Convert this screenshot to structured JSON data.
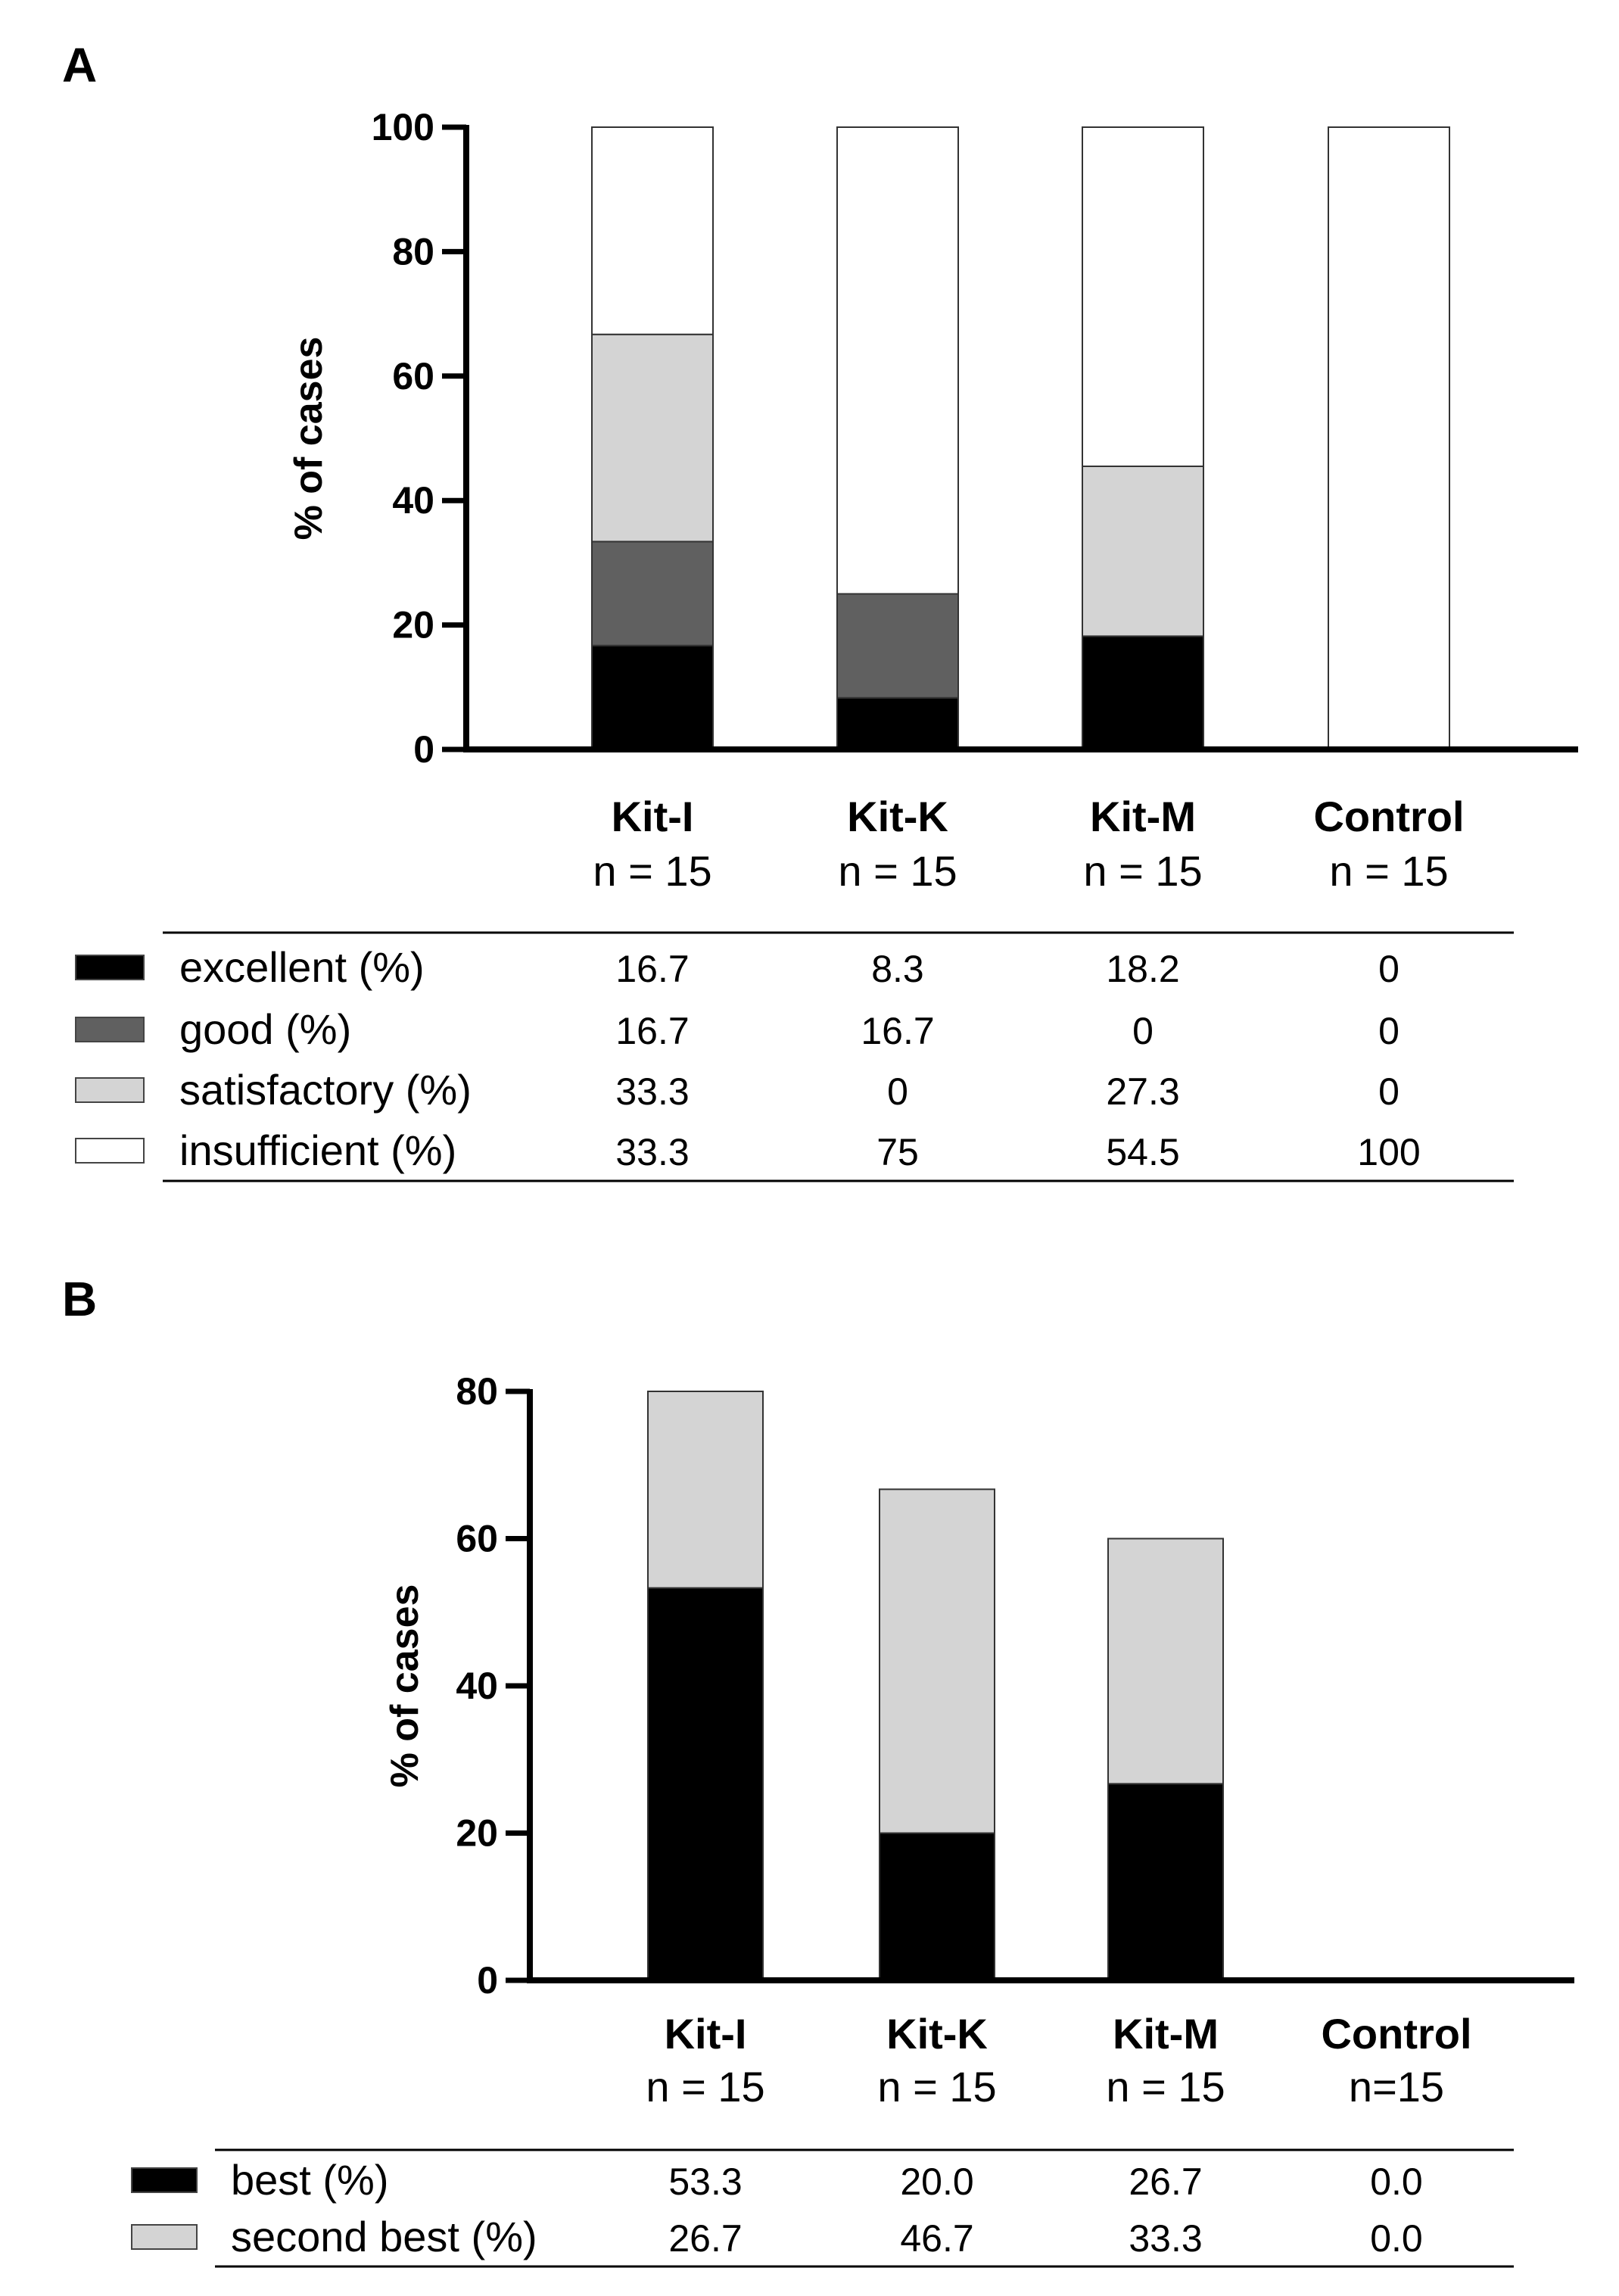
{
  "chart_data": [
    {
      "panel": "A",
      "type": "bar",
      "stacked": true,
      "ylabel": "% of cases",
      "ylim": [
        0,
        100
      ],
      "yticks": [
        0,
        20,
        40,
        60,
        80,
        100
      ],
      "categories": [
        {
          "name": "Kit-I",
          "n": "n = 15"
        },
        {
          "name": "Kit-K",
          "n": "n = 15"
        },
        {
          "name": "Kit-M",
          "n": "n = 15"
        },
        {
          "name": "Control",
          "n": "n = 15"
        }
      ],
      "series": [
        {
          "name": "excellent (%)",
          "color": "#000000",
          "values": [
            16.7,
            8.3,
            18.2,
            0
          ],
          "labels": [
            "16.7",
            "8.3",
            "18.2",
            "0"
          ]
        },
        {
          "name": "good (%)",
          "color": "#606060",
          "values": [
            16.7,
            16.7,
            0,
            0
          ],
          "labels": [
            "16.7",
            "16.7",
            "0",
            "0"
          ]
        },
        {
          "name": "satisfactory (%)",
          "color": "#d4d4d4",
          "values": [
            33.3,
            0,
            27.3,
            0
          ],
          "labels": [
            "33.3",
            "0",
            "27.3",
            "0"
          ]
        },
        {
          "name": "insufficient (%)",
          "color": "#ffffff",
          "values": [
            33.3,
            75,
            54.5,
            100
          ],
          "labels": [
            "33.3",
            "75",
            "54.5",
            "100"
          ]
        }
      ]
    },
    {
      "panel": "B",
      "type": "bar",
      "stacked": true,
      "ylabel": "% of cases",
      "ylim": [
        0,
        80
      ],
      "yticks": [
        0,
        20,
        40,
        60,
        80
      ],
      "categories": [
        {
          "name": "Kit-I",
          "n": "n = 15"
        },
        {
          "name": "Kit-K",
          "n": "n = 15"
        },
        {
          "name": "Kit-M",
          "n": "n = 15"
        },
        {
          "name": "Control",
          "n": "n=15"
        }
      ],
      "series": [
        {
          "name": "best (%)",
          "color": "#000000",
          "values": [
            53.3,
            20.0,
            26.7,
            0.0
          ],
          "labels": [
            "53.3",
            "20.0",
            "26.7",
            "0.0"
          ]
        },
        {
          "name": "second best (%)",
          "color": "#d4d4d4",
          "values": [
            26.7,
            46.7,
            33.3,
            0.0
          ],
          "labels": [
            "26.7",
            "46.7",
            "33.3",
            "0.0"
          ]
        }
      ]
    }
  ]
}
